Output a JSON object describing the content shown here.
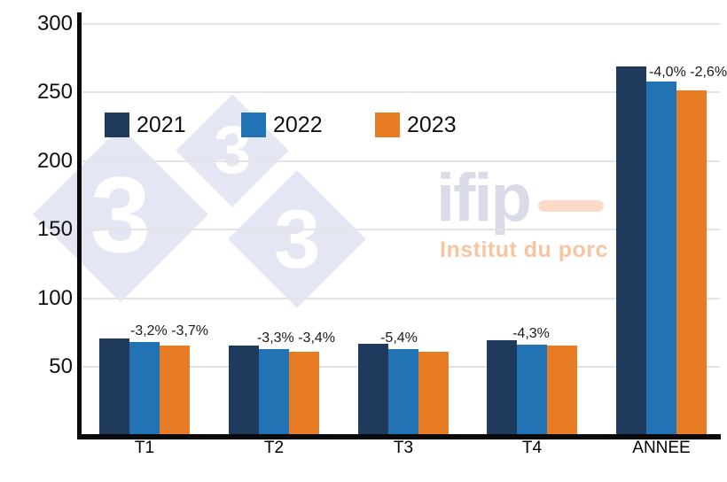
{
  "chart_data": {
    "type": "bar",
    "title": "",
    "xlabel": "",
    "ylabel": "",
    "categories": [
      "T1",
      "T2",
      "T3",
      "T4",
      "ANNEE"
    ],
    "series": [
      {
        "name": "2021",
        "color": "#1f3a5c",
        "values": [
          70.5,
          65.2,
          66.8,
          69.3,
          268.5
        ]
      },
      {
        "name": "2022",
        "color": "#2173b4",
        "values": [
          68.2,
          63.0,
          63.2,
          66.3,
          257.8
        ]
      },
      {
        "name": "2023",
        "color": "#e87c24",
        "values": [
          65.7,
          60.9,
          60.9,
          65.6,
          251.1
        ]
      }
    ],
    "bar_labels": [
      "-3,2% -3,7%",
      "-3,3% -3,4%",
      "-5,4%",
      "-4,3%",
      "-4,0% -2,6%"
    ],
    "ylim": [
      0,
      300
    ],
    "yticks": [
      50,
      100,
      150,
      200,
      250,
      300
    ],
    "grid": true,
    "legend_position": "top-left-inside"
  },
  "watermark": {
    "diamond_glyph": "3",
    "logo_title": "ifip",
    "logo_subtitle": "Institut du porc"
  },
  "colors": {
    "navy": "#1f3a5c",
    "blue": "#2173b4",
    "orange": "#e87c24",
    "grid": "#e4e4e6",
    "axis": "#0a0a0a",
    "diamond": "#e4e6f4",
    "logo_title": "#dadbe9",
    "logo_dash": "#fbdbc8",
    "logo_subtitle": "#f8c5a2",
    "label_text": "#1a1a1a"
  }
}
